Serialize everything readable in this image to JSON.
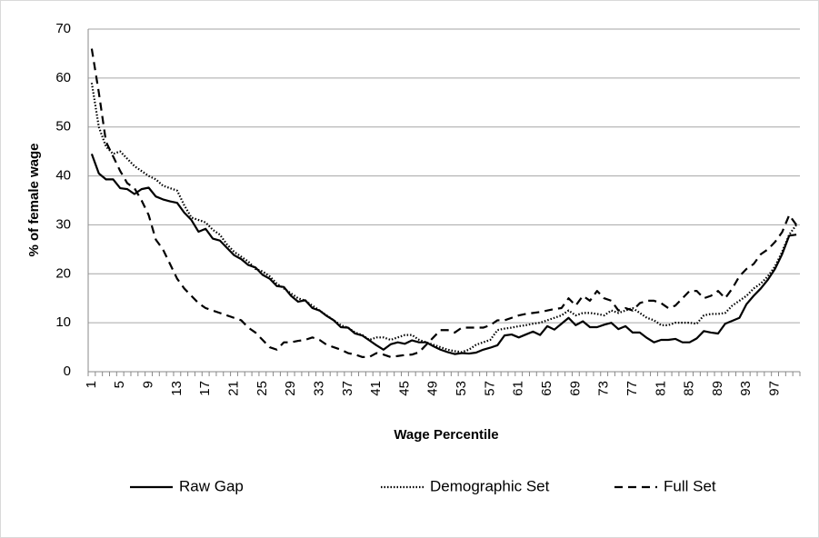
{
  "chart_data": {
    "type": "line",
    "y_label": "% of female wage",
    "x_label": "Wage Percentile",
    "categories": [
      1,
      null,
      null,
      null,
      5,
      null,
      null,
      null,
      9,
      null,
      null,
      null,
      13,
      null,
      null,
      null,
      17,
      null,
      null,
      null,
      21,
      null,
      null,
      null,
      25,
      null,
      null,
      null,
      29,
      null,
      null,
      null,
      33,
      null,
      null,
      null,
      37,
      null,
      null,
      null,
      41,
      null,
      null,
      null,
      45,
      null,
      null,
      null,
      49,
      null,
      null,
      null,
      53,
      null,
      null,
      null,
      57,
      null,
      null,
      null,
      61,
      null,
      null,
      null,
      65,
      null,
      null,
      null,
      69,
      null,
      null,
      null,
      73,
      null,
      null,
      null,
      77,
      null,
      null,
      null,
      81,
      null,
      null,
      null,
      85,
      null,
      null,
      null,
      89,
      null,
      null,
      null,
      93,
      null,
      null,
      null,
      97,
      null,
      null,
      null
    ],
    "ylim": [
      0,
      70
    ],
    "yticks": [
      0,
      10,
      20,
      30,
      40,
      50,
      60,
      70
    ],
    "grid": true,
    "series": [
      {
        "name": "Raw Gap",
        "color": "#000000",
        "dash": "solid",
        "values": [
          44.5,
          40.5,
          39.3,
          39.3,
          37.5,
          37.3,
          36.3,
          37.3,
          37.6,
          35.8,
          35.2,
          34.8,
          34.5,
          32.5,
          31,
          28.6,
          29.2,
          27.2,
          26.8,
          25.3,
          23.8,
          23,
          21.8,
          21.3,
          19.8,
          19,
          17.5,
          17.3,
          15.5,
          14.3,
          14.6,
          13,
          12.5,
          11.4,
          10.5,
          9.1,
          9,
          7.8,
          7.4,
          6.4,
          5.4,
          4.5,
          5.6,
          6,
          5.7,
          6.4,
          6,
          6,
          5.2,
          4.5,
          4,
          3.6,
          3.8,
          3.7,
          3.9,
          4.5,
          4.9,
          5.4,
          7.4,
          7.6,
          7,
          7.6,
          8.2,
          7.5,
          9.3,
          8.6,
          9.8,
          11,
          9.5,
          10.3,
          9.1,
          9.1,
          9.6,
          10,
          8.7,
          9.3,
          8,
          8,
          6.9,
          6,
          6.5,
          6.5,
          6.7,
          6,
          6,
          6.8,
          8.3,
          8,
          7.8,
          9.8,
          10.4,
          11,
          13.8,
          15.5,
          17,
          18.8,
          21,
          24,
          27.8,
          28
        ]
      },
      {
        "name": "Demographic Set",
        "color": "#000000",
        "dash": "dotted",
        "values": [
          59,
          50,
          46,
          44.5,
          45,
          43.5,
          42,
          41,
          40,
          39.3,
          38,
          37.5,
          37,
          34,
          31.5,
          31,
          30.5,
          29,
          28,
          26,
          24.5,
          23.5,
          22.5,
          21,
          20.5,
          19.5,
          18,
          17,
          16,
          15,
          14.5,
          13.5,
          12.5,
          11.5,
          10.5,
          9.5,
          9,
          8,
          7.5,
          6.5,
          7,
          7,
          6.5,
          7,
          7.5,
          7.5,
          6.5,
          6,
          5.5,
          5,
          4.5,
          4.2,
          4,
          4.5,
          5.5,
          6,
          6.5,
          8.5,
          8.8,
          9,
          9.3,
          9.5,
          9.8,
          10,
          10.5,
          11,
          11.5,
          12.5,
          11.5,
          12,
          12,
          11.8,
          11.5,
          12.5,
          12,
          12.5,
          13,
          12,
          11,
          10.5,
          9.5,
          9.5,
          10,
          10,
          10,
          9.8,
          11.5,
          11.8,
          11.8,
          12,
          13.5,
          14.5,
          15.5,
          17,
          18,
          19.5,
          21.5,
          24.5,
          28,
          30
        ]
      },
      {
        "name": "Full Set",
        "color": "#000000",
        "dash": "dashed",
        "values": [
          66,
          57,
          47,
          44,
          41,
          38.5,
          37.5,
          35,
          32,
          27,
          25,
          22,
          19,
          17,
          15.5,
          14,
          13,
          12.5,
          12,
          11.5,
          11,
          10.5,
          9,
          8,
          6.5,
          5,
          4.5,
          6,
          6,
          6.3,
          6.5,
          7,
          6.5,
          5.5,
          5,
          4.5,
          3.8,
          3.5,
          3,
          3,
          3.8,
          3.5,
          3,
          3.2,
          3.4,
          3.5,
          4,
          5.5,
          7,
          8.5,
          8.5,
          8,
          9,
          9,
          9,
          9,
          9.5,
          10.5,
          10.5,
          11,
          11.5,
          11.8,
          12,
          12.2,
          12.5,
          12.8,
          13,
          15,
          13.5,
          15.5,
          14.5,
          16.5,
          15,
          14.5,
          12.5,
          13,
          12.5,
          14,
          14.5,
          14.5,
          14,
          13,
          13.5,
          15,
          16.5,
          16.5,
          15,
          15.5,
          16.5,
          15,
          17,
          19.5,
          21,
          22,
          24,
          25,
          26.5,
          28.5,
          32,
          30
        ]
      }
    ]
  }
}
